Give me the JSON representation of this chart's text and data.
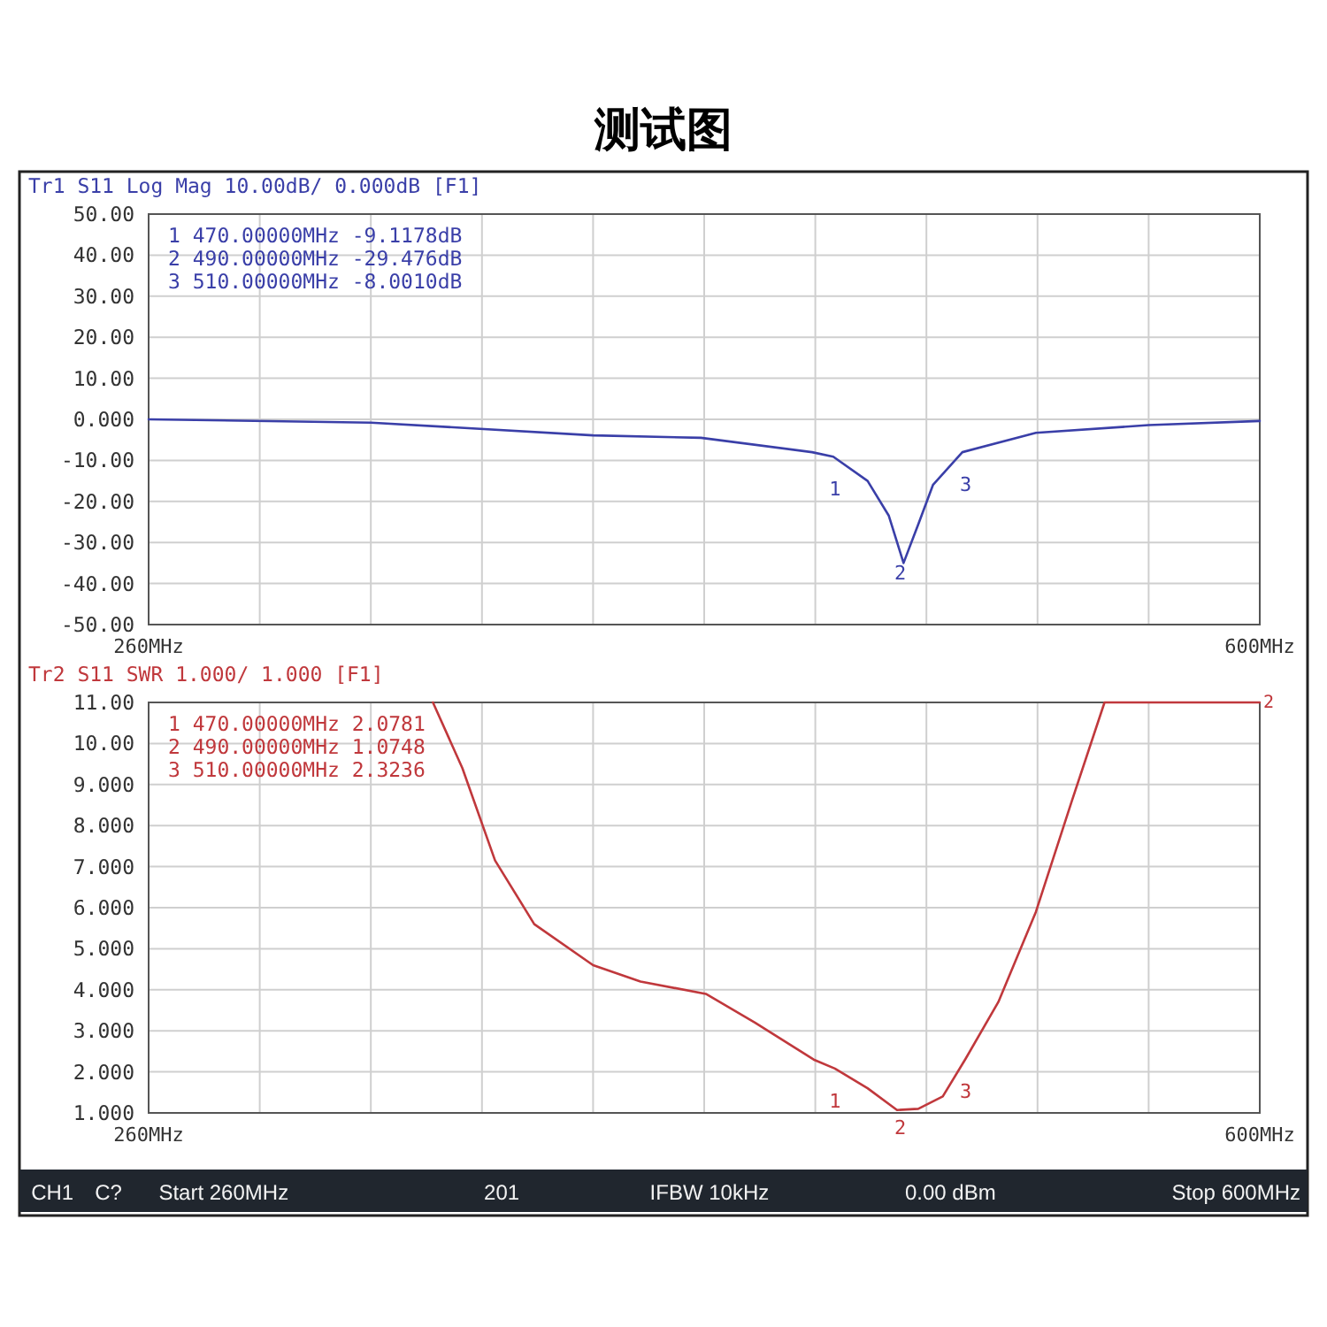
{
  "chart_data": [
    {
      "type": "line",
      "title": "测试图",
      "subtitle": "Tr1 S11 Log Mag 10.00dB/ 0.000dB      [F1]",
      "xlim": [
        260,
        600
      ],
      "xticks": [
        {
          "value": 260,
          "label": "260MHz"
        },
        {
          "value": 294,
          "label": null
        },
        {
          "value": 328,
          "label": null
        },
        {
          "value": 362,
          "label": null
        },
        {
          "value": 396,
          "label": null
        },
        {
          "value": 430,
          "label": null
        },
        {
          "value": 464,
          "label": null
        },
        {
          "value": 498,
          "label": null
        },
        {
          "value": 532,
          "label": null
        },
        {
          "value": 566,
          "label": null
        },
        {
          "value": 600,
          "label": "600MHz"
        }
      ],
      "ylim": [
        -50,
        50
      ],
      "yticks": [
        {
          "value": 50,
          "label": "50.00"
        },
        {
          "value": 40,
          "label": "40.00"
        },
        {
          "value": 30,
          "label": "30.00"
        },
        {
          "value": 20,
          "label": "20.00"
        },
        {
          "value": 10,
          "label": "10.00"
        },
        {
          "value": 0,
          "label": "0.000"
        },
        {
          "value": -10,
          "label": "-10.00"
        },
        {
          "value": -20,
          "label": "-20.00"
        },
        {
          "value": -30,
          "label": "-30.00"
        },
        {
          "value": -40,
          "label": "-40.00"
        },
        {
          "value": -50,
          "label": "-50.00"
        }
      ],
      "grid": true,
      "series": [
        {
          "color": "#3a3fa8",
          "x": [
            260,
            328,
            396,
            429,
            463,
            469.5,
            480,
            486.5,
            491,
            495.5,
            500,
            509,
            531.5,
            566,
            600
          ],
          "values": [
            0,
            -0.8,
            -3.9,
            -4.5,
            -8,
            -9.1,
            -15,
            -23.5,
            -35,
            -25.6,
            -16,
            -8,
            -3.3,
            -1.4,
            -0.4
          ]
        }
      ],
      "annotations": [
        "1 470.00000MHz -9.1178dB",
        "2 490.00000MHz -29.476dB",
        "3 510.00000MHz -8.0010dB",
        {
          "text": "1",
          "x": 470,
          "y": -9.1178
        },
        {
          "text": "2",
          "x": 490,
          "y": -29.476
        },
        {
          "text": "3",
          "x": 510,
          "y": -8.001
        }
      ]
    },
    {
      "type": "line",
      "subtitle": "Tr2 S11 SWR 1.000/ 1.000      [F1]",
      "xlim": [
        260,
        600
      ],
      "xticks": [
        {
          "value": 260,
          "label": "260MHz"
        },
        {
          "value": 294,
          "label": null
        },
        {
          "value": 328,
          "label": null
        },
        {
          "value": 362,
          "label": null
        },
        {
          "value": 396,
          "label": null
        },
        {
          "value": 430,
          "label": null
        },
        {
          "value": 464,
          "label": null
        },
        {
          "value": 498,
          "label": null
        },
        {
          "value": 532,
          "label": null
        },
        {
          "value": 566,
          "label": null
        },
        {
          "value": 600,
          "label": "600MHz"
        }
      ],
      "ylim": [
        1,
        11
      ],
      "yticks": [
        {
          "value": 11,
          "label": "11.00"
        },
        {
          "value": 10,
          "label": "10.00"
        },
        {
          "value": 9,
          "label": "9.000"
        },
        {
          "value": 8,
          "label": "8.000"
        },
        {
          "value": 7,
          "label": "7.000"
        },
        {
          "value": 6,
          "label": "6.000"
        },
        {
          "value": 5,
          "label": "5.000"
        },
        {
          "value": 4,
          "label": "4.000"
        },
        {
          "value": 3,
          "label": "3.000"
        },
        {
          "value": 2,
          "label": "2.000"
        },
        {
          "value": 1,
          "label": "1.000"
        }
      ],
      "grid": true,
      "series": [
        {
          "color": "#c0383c",
          "x": [
            347,
            356,
            366,
            378,
            396,
            410.5,
            430.5,
            445.5,
            463.5,
            470,
            480,
            489,
            495.5,
            503,
            510,
            520,
            531.5,
            542.5,
            552.5,
            600
          ],
          "values": [
            11,
            9.4,
            7.15,
            5.6,
            4.6,
            4.2,
            3.9,
            3.2,
            2.3,
            2.08,
            1.6,
            1.07,
            1.1,
            1.4,
            2.32,
            3.7,
            5.9,
            8.6,
            11,
            11
          ]
        }
      ],
      "annotations": [
        "1 470.00000MHz 2.0781",
        "2 490.00000MHz 1.0748",
        "3 510.00000MHz 2.3236",
        {
          "text": "1",
          "x": 470,
          "y": 2.0781
        },
        {
          "text": "2",
          "x": 490,
          "y": 1.0748
        },
        {
          "text": "3",
          "x": 510,
          "y": 2.3236
        },
        {
          "text": "2",
          "x": 600,
          "y": 11
        },
        "CH1",
        "C?",
        "Start 260MHz",
        "201",
        "IFBW 10kHz",
        "0.00 dBm",
        "Stop 600MHz"
      ]
    }
  ]
}
